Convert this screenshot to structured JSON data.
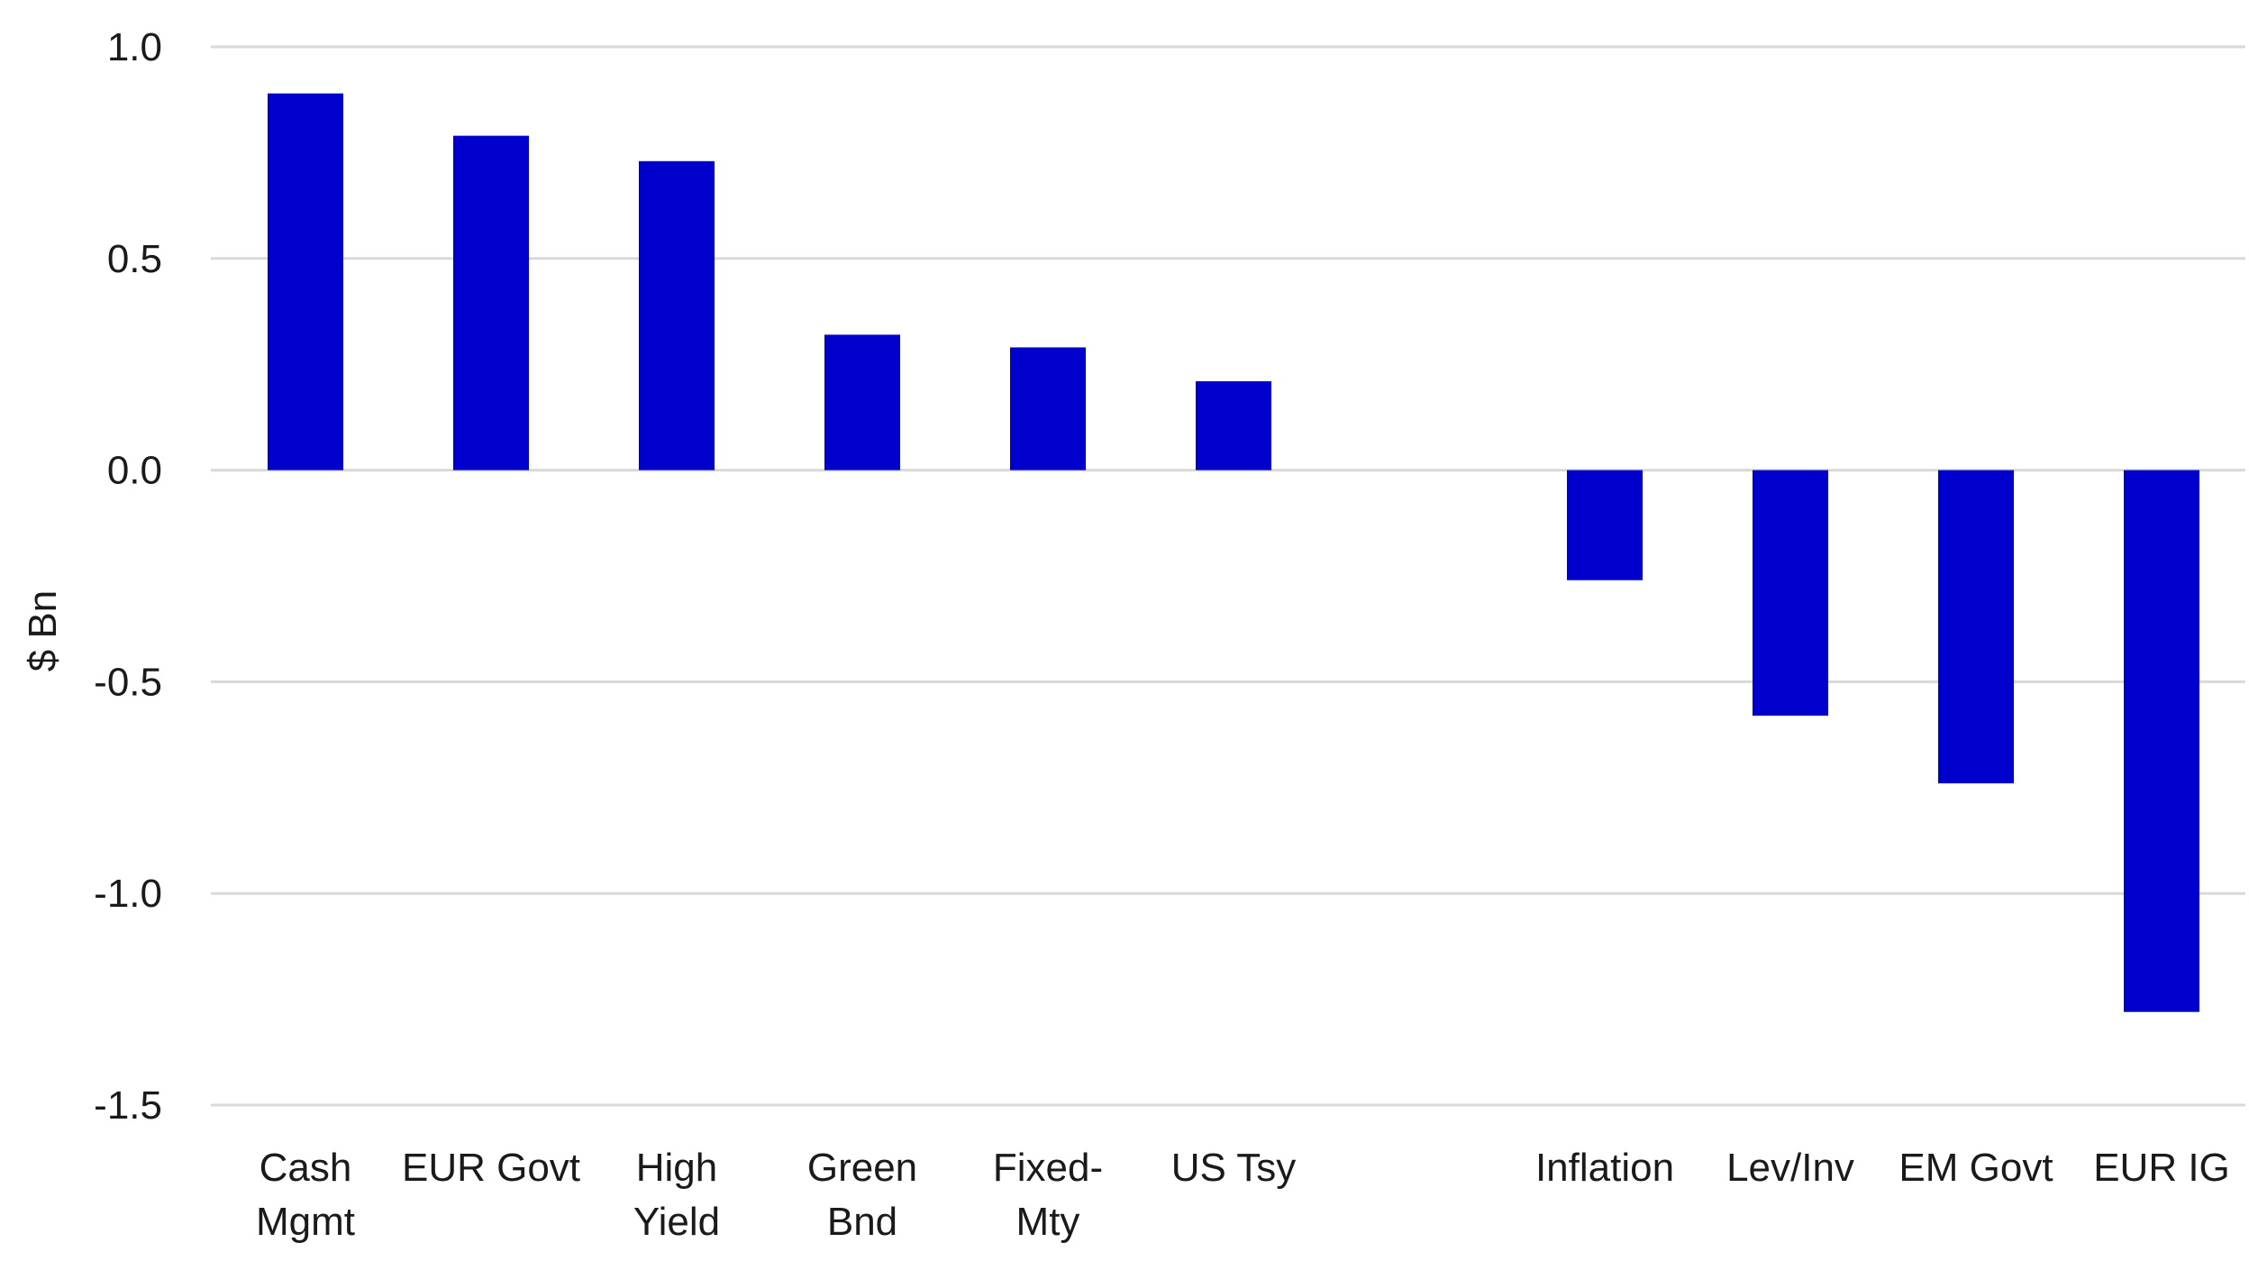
{
  "chart_data": {
    "type": "bar",
    "title": "",
    "xlabel": "",
    "ylabel": "$ Bn",
    "ylim": [
      -1.5,
      1.0
    ],
    "yticks": [
      1.0,
      0.5,
      0.0,
      -0.5,
      -1.0,
      -1.5
    ],
    "ytick_labels": [
      "1.0",
      "0.5",
      "0.0",
      "-0.5",
      "-1.0",
      "-1.5"
    ],
    "grid": true,
    "legend": "none",
    "bar_color": "#0000CC",
    "grid_color": "#D9D9D9",
    "categories": [
      {
        "label": [
          "Cash",
          "Mgmt"
        ],
        "value": 0.89
      },
      {
        "label": [
          "EUR Govt"
        ],
        "value": 0.79
      },
      {
        "label": [
          "High",
          "Yield"
        ],
        "value": 0.73
      },
      {
        "label": [
          "Green",
          "Bnd"
        ],
        "value": 0.32
      },
      {
        "label": [
          "Fixed-",
          "Mty"
        ],
        "value": 0.29
      },
      {
        "label": [
          "US Tsy"
        ],
        "value": 0.21
      },
      {
        "label": [
          ""
        ],
        "value": null
      },
      {
        "label": [
          "Inflation"
        ],
        "value": -0.26
      },
      {
        "label": [
          "Lev/Inv"
        ],
        "value": -0.58
      },
      {
        "label": [
          "EM Govt"
        ],
        "value": -0.74
      },
      {
        "label": [
          "EUR IG"
        ],
        "value": -1.28
      }
    ]
  }
}
